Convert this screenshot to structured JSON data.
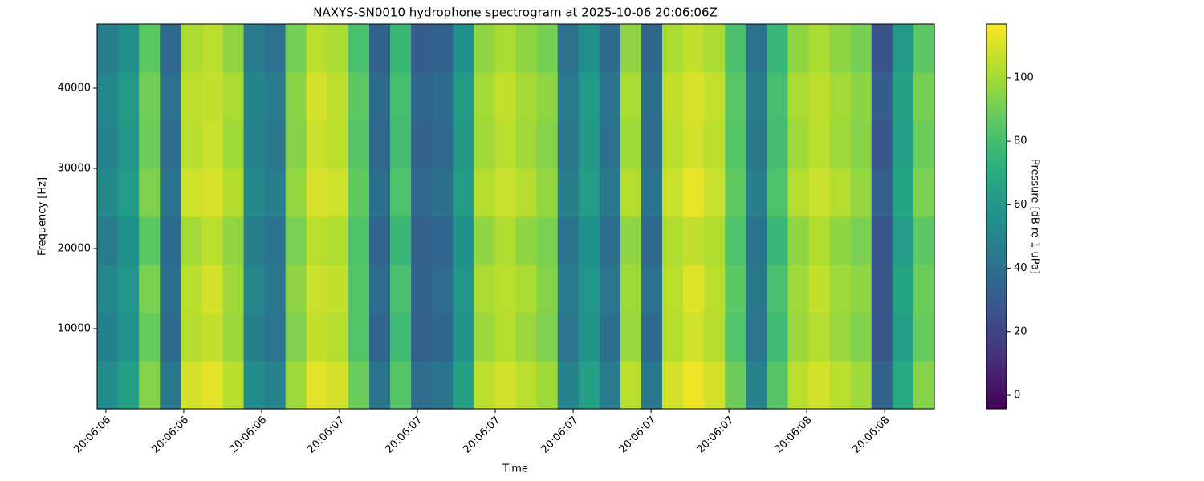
{
  "chart_data": {
    "type": "heatmap",
    "title": "NAXYS-SN0010 hydrophone spectrogram at 2025-10-06 20:06:06Z",
    "x_label": "Time",
    "y_label": "Frequency [Hz]",
    "colorbar_label": "Pressure [dB re 1 uPa]",
    "colormap": "viridis",
    "x_bins": [
      6.582,
      6.625,
      6.668,
      6.711,
      6.754,
      6.797,
      6.84,
      6.883,
      6.926,
      6.969,
      7.012,
      7.055,
      7.098,
      7.141,
      7.184,
      7.227,
      7.27,
      7.313,
      7.356,
      7.399,
      7.442,
      7.485,
      7.528,
      7.571,
      7.614,
      7.657,
      7.7,
      7.743,
      7.786,
      7.829,
      7.872,
      7.915,
      7.958,
      8.001,
      8.044,
      8.087,
      8.13,
      8.173,
      8.216,
      8.259,
      8.302
    ],
    "y_bins": [
      0,
      6000,
      12000,
      18000,
      24000,
      30000,
      36000,
      42000,
      48000
    ],
    "z": [
      [
        54,
        64,
        94,
        44,
        109,
        112,
        104,
        54,
        49,
        99,
        112,
        109,
        89,
        42,
        84,
        39,
        42,
        64,
        104,
        109,
        104,
        99,
        49,
        64,
        46,
        104,
        44,
        109,
        114,
        109,
        89,
        49,
        84,
        104,
        109,
        104,
        99,
        34,
        69,
        94
      ],
      [
        48,
        58,
        88,
        38,
        103,
        106,
        98,
        48,
        43,
        93,
        106,
        103,
        83,
        36,
        78,
        33,
        36,
        58,
        98,
        103,
        98,
        93,
        43,
        58,
        40,
        98,
        38,
        103,
        108,
        103,
        83,
        43,
        78,
        98,
        103,
        98,
        93,
        28,
        63,
        88
      ],
      [
        52,
        59,
        92,
        40,
        104,
        109,
        99,
        51,
        44,
        96,
        107,
        106,
        84,
        39,
        81,
        34,
        39,
        59,
        101,
        104,
        101,
        94,
        46,
        59,
        43,
        99,
        41,
        104,
        111,
        104,
        86,
        44,
        81,
        99,
        106,
        99,
        96,
        29,
        66,
        89
      ],
      [
        46,
        57,
        86,
        38,
        100,
        104,
        96,
        47,
        42,
        92,
        104,
        102,
        82,
        35,
        76,
        33,
        35,
        57,
        96,
        102,
        96,
        92,
        42,
        57,
        39,
        96,
        37,
        102,
        106,
        102,
        82,
        42,
        76,
        96,
        102,
        96,
        92,
        28,
        62,
        86
      ],
      [
        53,
        62,
        93,
        42,
        108,
        110,
        103,
        52,
        47,
        97,
        110,
        108,
        87,
        40,
        82,
        37,
        40,
        62,
        103,
        107,
        103,
        97,
        47,
        62,
        44,
        103,
        42,
        107,
        113,
        107,
        87,
        47,
        82,
        103,
        107,
        103,
        97,
        32,
        67,
        92
      ],
      [
        49,
        60,
        89,
        39,
        104,
        107,
        99,
        49,
        44,
        94,
        107,
        104,
        84,
        37,
        79,
        34,
        37,
        60,
        99,
        104,
        99,
        94,
        44,
        60,
        41,
        99,
        39,
        104,
        109,
        104,
        84,
        44,
        79,
        99,
        104,
        99,
        94,
        29,
        64,
        89
      ],
      [
        51,
        61,
        90,
        41,
        105,
        106,
        101,
        50,
        46,
        95,
        109,
        105,
        86,
        38,
        80,
        36,
        38,
        61,
        100,
        106,
        100,
        96,
        45,
        61,
        42,
        101,
        40,
        106,
        110,
        106,
        85,
        46,
        80,
        101,
        105,
        100,
        95,
        31,
        65,
        91
      ],
      [
        47,
        56,
        86,
        37,
        101,
        104,
        96,
        46,
        41,
        91,
        104,
        101,
        81,
        34,
        76,
        31,
        34,
        56,
        96,
        101,
        96,
        91,
        41,
        56,
        38,
        96,
        36,
        101,
        106,
        101,
        81,
        41,
        76,
        96,
        101,
        96,
        91,
        26,
        61,
        86
      ]
    ],
    "xlim": [
      6.582,
      8.302
    ],
    "xticks": [
      {
        "value": 6.6,
        "label": "20:06:06"
      },
      {
        "value": 6.76,
        "label": "20:06:06"
      },
      {
        "value": 6.92,
        "label": "20:06:06"
      },
      {
        "value": 7.08,
        "label": "20:06:07"
      },
      {
        "value": 7.24,
        "label": "20:06:07"
      },
      {
        "value": 7.4,
        "label": "20:06:07"
      },
      {
        "value": 7.56,
        "label": "20:06:07"
      },
      {
        "value": 7.72,
        "label": "20:06:07"
      },
      {
        "value": 7.88,
        "label": "20:06:07"
      },
      {
        "value": 8.04,
        "label": "20:06:08"
      },
      {
        "value": 8.2,
        "label": "20:06:08"
      }
    ],
    "ylim": [
      0,
      48000
    ],
    "yticks": [
      10000,
      20000,
      30000,
      40000
    ],
    "zlim": [
      -4.3,
      116.9
    ],
    "zticks": [
      0,
      20,
      40,
      60,
      80,
      100
    ]
  }
}
